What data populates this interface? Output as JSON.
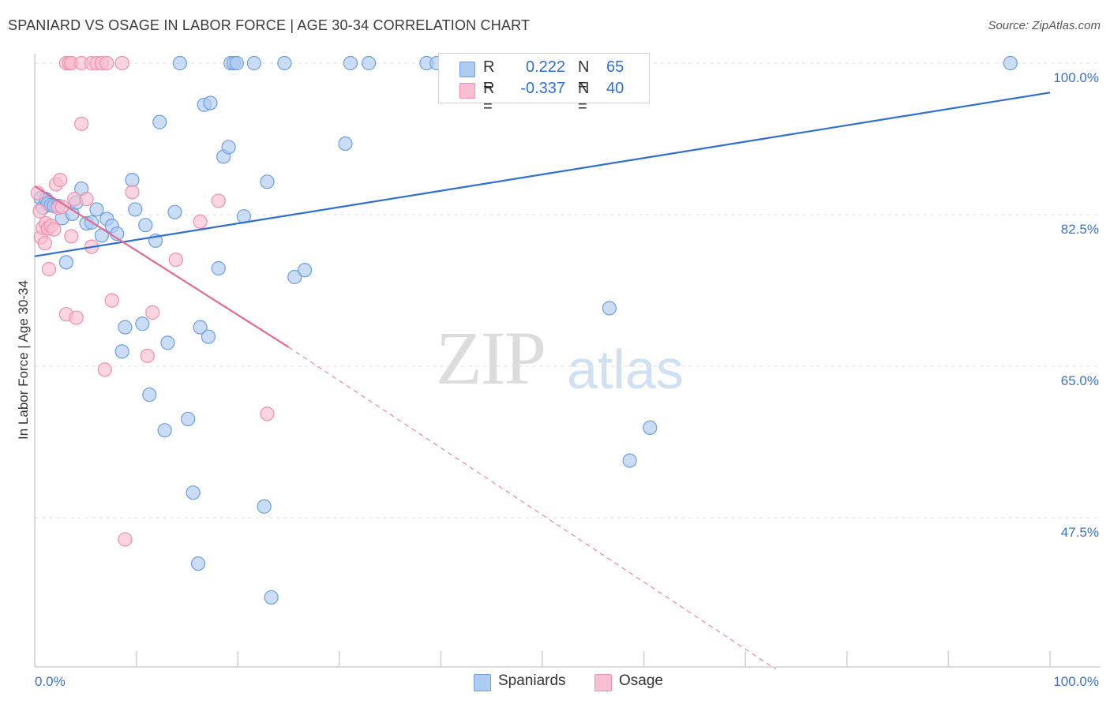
{
  "header": {
    "title": "SPANIARD VS OSAGE IN LABOR FORCE | AGE 30-34 CORRELATION CHART",
    "source": "Source: ZipAtlas.com"
  },
  "watermark": {
    "zip": "ZIP",
    "atlas": "atlas"
  },
  "legend_top": {
    "rows": [
      {
        "r_label": "R =",
        "r_value": "0.222",
        "n_label": "N =",
        "n_value": "65"
      },
      {
        "r_label": "R =",
        "r_value": "-0.337",
        "n_label": "N =",
        "n_value": "40"
      }
    ]
  },
  "legend_bottom": {
    "items": [
      "Spaniards",
      "Osage"
    ]
  },
  "colors": {
    "blue_fill": "#aecbf0",
    "blue_stroke": "#6b9ee0",
    "blue_line": "#2f6fd1",
    "pink_fill": "#f7bfd0",
    "pink_stroke": "#ee8fae",
    "pink_line": "#e06a97",
    "axis_label": "#3a72c8",
    "grid": "#e3e3e3"
  },
  "chart_data": {
    "type": "scatter",
    "title": "SPANIARD VS OSAGE IN LABOR FORCE | AGE 30-34 CORRELATION CHART",
    "xlabel": "",
    "ylabel": "In Labor Force | Age 30-34",
    "xlim": [
      0,
      100
    ],
    "ylim": [
      30,
      101.5
    ],
    "x_tick_labels": [
      "0.0%",
      "100.0%"
    ],
    "y_ticks": [
      47.5,
      65.0,
      82.5,
      100.0
    ],
    "y_tick_labels": [
      "47.5%",
      "65.0%",
      "82.5%",
      "100.0%"
    ],
    "grid": true,
    "legend_placement": "bottom-center",
    "series": [
      {
        "name": "Spaniards",
        "R": 0.222,
        "N": 65,
        "trend": {
          "x": [
            0,
            100
          ],
          "y": [
            77.7,
            96.6
          ],
          "style": "solid"
        },
        "points": [
          [
            0.6,
            84.4
          ],
          [
            0.8,
            83.3
          ],
          [
            1.1,
            84.3
          ],
          [
            1.3,
            83.8
          ],
          [
            1.6,
            83.6
          ],
          [
            1.9,
            83.5
          ],
          [
            2.3,
            83.5
          ],
          [
            2.7,
            82.1
          ],
          [
            3.1,
            77.0
          ],
          [
            3.7,
            82.6
          ],
          [
            4.1,
            83.9
          ],
          [
            4.6,
            85.5
          ],
          [
            5.1,
            81.5
          ],
          [
            5.6,
            81.6
          ],
          [
            6.1,
            83.1
          ],
          [
            6.6,
            80.1
          ],
          [
            7.1,
            82.0
          ],
          [
            7.6,
            81.2
          ],
          [
            8.1,
            80.3
          ],
          [
            8.6,
            66.7
          ],
          [
            8.9,
            69.5
          ],
          [
            9.6,
            86.5
          ],
          [
            9.9,
            83.1
          ],
          [
            10.6,
            69.9
          ],
          [
            10.9,
            81.3
          ],
          [
            11.3,
            61.7
          ],
          [
            11.9,
            79.5
          ],
          [
            12.3,
            93.2
          ],
          [
            12.8,
            57.6
          ],
          [
            13.1,
            67.7
          ],
          [
            13.8,
            82.8
          ],
          [
            14.3,
            100.0
          ],
          [
            15.1,
            58.9
          ],
          [
            15.6,
            50.4
          ],
          [
            16.1,
            42.2
          ],
          [
            16.3,
            69.5
          ],
          [
            16.7,
            95.2
          ],
          [
            17.1,
            68.4
          ],
          [
            17.3,
            95.4
          ],
          [
            18.1,
            76.3
          ],
          [
            18.6,
            89.2
          ],
          [
            19.1,
            90.3
          ],
          [
            19.3,
            100.0
          ],
          [
            19.6,
            100.0
          ],
          [
            19.9,
            100.0
          ],
          [
            20.6,
            82.3
          ],
          [
            21.6,
            100.0
          ],
          [
            22.6,
            48.8
          ],
          [
            22.9,
            86.3
          ],
          [
            23.3,
            38.3
          ],
          [
            24.6,
            100.0
          ],
          [
            25.6,
            75.3
          ],
          [
            26.6,
            76.1
          ],
          [
            30.6,
            90.7
          ],
          [
            31.1,
            100.0
          ],
          [
            32.9,
            100.0
          ],
          [
            38.6,
            100.0
          ],
          [
            39.6,
            100.0
          ],
          [
            40.6,
            100.0
          ],
          [
            44.1,
            100.0
          ],
          [
            45.1,
            100.0
          ],
          [
            56.6,
            71.7
          ],
          [
            58.6,
            54.1
          ],
          [
            60.6,
            57.9
          ],
          [
            96.1,
            100.0
          ]
        ]
      },
      {
        "name": "Osage",
        "R": -0.337,
        "N": 40,
        "trend": {
          "x": [
            0,
            25
          ],
          "y": [
            85.8,
            67.2
          ],
          "style": "solid"
        },
        "trend_extended": {
          "x": [
            25,
            73
          ],
          "y": [
            67.2,
            30.0
          ],
          "style": "dashed"
        },
        "points": [
          [
            0.3,
            85.0
          ],
          [
            0.5,
            82.9
          ],
          [
            0.6,
            79.9
          ],
          [
            0.8,
            81.0
          ],
          [
            1.0,
            79.2
          ],
          [
            1.1,
            81.5
          ],
          [
            1.3,
            80.9
          ],
          [
            1.4,
            76.2
          ],
          [
            1.6,
            81.2
          ],
          [
            1.9,
            80.8
          ],
          [
            2.1,
            86.0
          ],
          [
            2.3,
            83.3
          ],
          [
            2.5,
            86.5
          ],
          [
            2.7,
            83.4
          ],
          [
            3.1,
            100.0
          ],
          [
            3.1,
            71.0
          ],
          [
            3.4,
            100.0
          ],
          [
            3.6,
            100.0
          ],
          [
            3.9,
            84.3
          ],
          [
            3.6,
            80.0
          ],
          [
            4.1,
            70.6
          ],
          [
            4.6,
            93.0
          ],
          [
            4.6,
            100.0
          ],
          [
            5.1,
            84.3
          ],
          [
            5.6,
            78.8
          ],
          [
            5.6,
            100.0
          ],
          [
            6.1,
            100.0
          ],
          [
            6.6,
            100.0
          ],
          [
            7.1,
            100.0
          ],
          [
            6.9,
            64.6
          ],
          [
            7.6,
            72.6
          ],
          [
            8.6,
            100.0
          ],
          [
            8.9,
            45.0
          ],
          [
            9.6,
            85.1
          ],
          [
            11.1,
            66.2
          ],
          [
            11.6,
            71.2
          ],
          [
            13.9,
            77.3
          ],
          [
            16.3,
            81.7
          ],
          [
            18.1,
            84.1
          ],
          [
            22.9,
            59.5
          ]
        ]
      }
    ]
  }
}
